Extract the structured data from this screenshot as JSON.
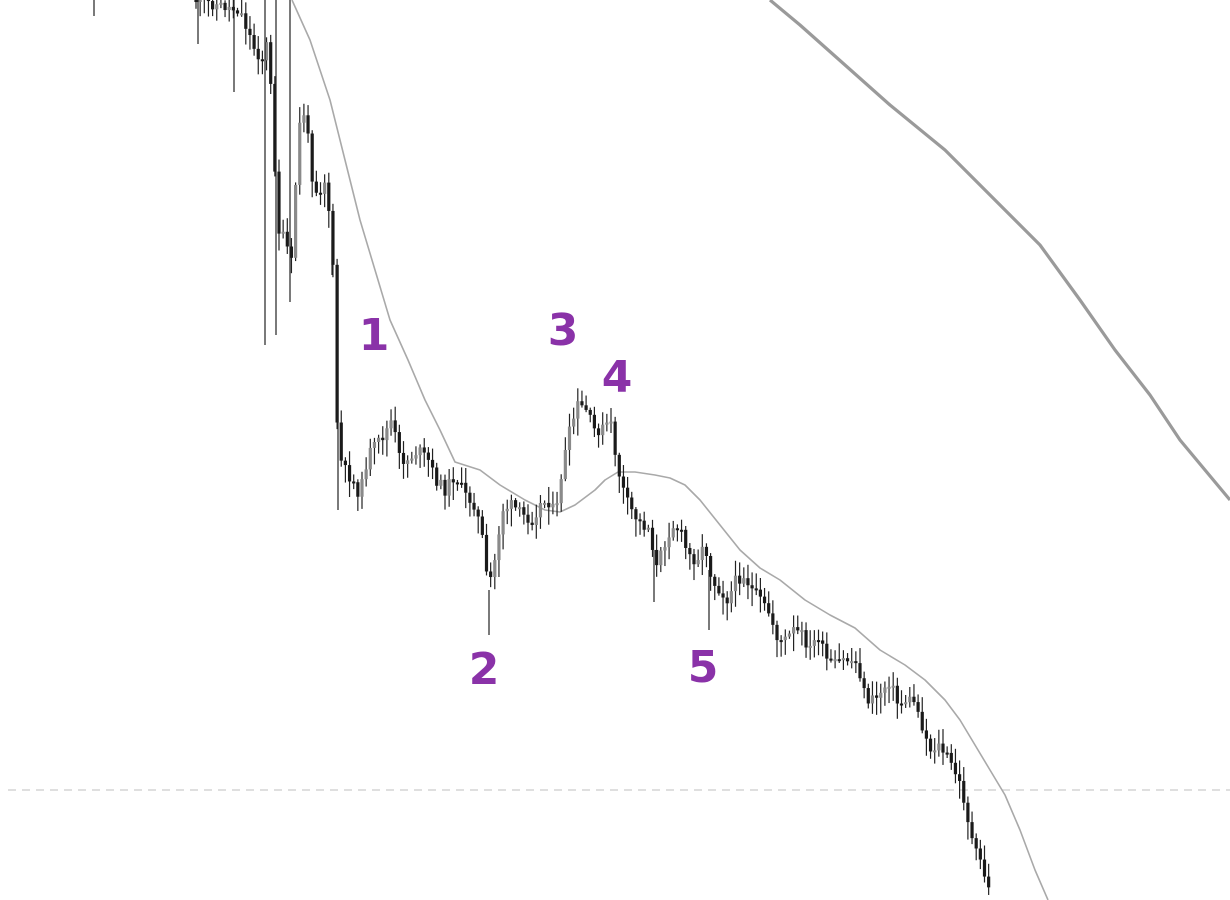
{
  "chart_data": {
    "type": "candlestick",
    "title": "",
    "xlabel": "",
    "ylabel": "",
    "grid": false,
    "legend": "none",
    "colors": {
      "bear_body": "#1a1a1a",
      "bull_body": "#8a8a8a",
      "wick": "#222222",
      "ma_fast": "#a9a9a9",
      "ma_slow": "#9a9a9a",
      "reference_line": "#cccccc",
      "label": "#8a32a8"
    },
    "wave_labels": [
      {
        "text": "1"
      },
      {
        "text": "2"
      },
      {
        "text": "3"
      },
      {
        "text": "4"
      },
      {
        "text": "5"
      }
    ]
  }
}
